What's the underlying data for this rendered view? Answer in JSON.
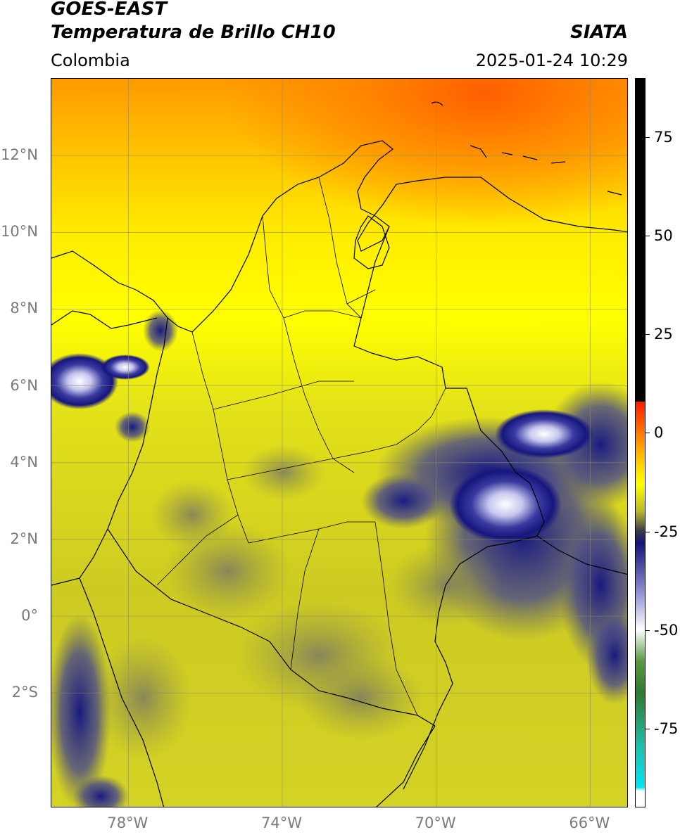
{
  "header": {
    "title_line1": "GOES-EAST",
    "title_line2": "Temperatura de Brillo CH10",
    "agency": "SIATA",
    "region": "Colombia",
    "timestamp": "2025-01-24 10:29"
  },
  "map": {
    "extent": {
      "lon_min": -80,
      "lon_max": -65,
      "lat_min": -5,
      "lat_max": 14
    },
    "lat_ticks": [
      {
        "value": 12,
        "label": "12°N"
      },
      {
        "value": 10,
        "label": "10°N"
      },
      {
        "value": 8,
        "label": "8°N"
      },
      {
        "value": 6,
        "label": "6°N"
      },
      {
        "value": 4,
        "label": "4°N"
      },
      {
        "value": 2,
        "label": "2°N"
      },
      {
        "value": 0,
        "label": "0°"
      },
      {
        "value": -2,
        "label": "2°S"
      }
    ],
    "lon_ticks": [
      {
        "value": -78,
        "label": "78°W"
      },
      {
        "value": -74,
        "label": "74°W"
      },
      {
        "value": -70,
        "label": "70°W"
      },
      {
        "value": -66,
        "label": "66°W"
      }
    ],
    "grid": true,
    "gridline_color": "#8c8c6a",
    "background_color": "#f2ef1a"
  },
  "colorbar": {
    "range": [
      -95,
      90
    ],
    "ticks": [
      {
        "value": 75,
        "label": "75"
      },
      {
        "value": 50,
        "label": "50"
      },
      {
        "value": 25,
        "label": "25"
      },
      {
        "value": 0,
        "label": "0"
      },
      {
        "value": -25,
        "label": "-25"
      },
      {
        "value": -50,
        "label": "-50"
      },
      {
        "value": -75,
        "label": "-75"
      }
    ],
    "stops": [
      {
        "value": 90,
        "color": "#000000"
      },
      {
        "value": 8,
        "color": "#000000"
      },
      {
        "value": 7.9,
        "color": "#ff1a00"
      },
      {
        "value": 0,
        "color": "#ff7a00"
      },
      {
        "value": -8,
        "color": "#ffd400"
      },
      {
        "value": -13,
        "color": "#ffff00"
      },
      {
        "value": -20,
        "color": "#b8b82a"
      },
      {
        "value": -25,
        "color": "#3a3a4a"
      },
      {
        "value": -28,
        "color": "#14147a"
      },
      {
        "value": -40,
        "color": "#8a8ad0"
      },
      {
        "value": -50,
        "color": "#ffffff"
      },
      {
        "value": -58,
        "color": "#5a9a40"
      },
      {
        "value": -66,
        "color": "#2e7a2e"
      },
      {
        "value": -80,
        "color": "#20c0b0"
      },
      {
        "value": -90,
        "color": "#00e6f0"
      },
      {
        "value": -91,
        "color": "#ffffff"
      },
      {
        "value": -95,
        "color": "#ffffff"
      }
    ]
  }
}
